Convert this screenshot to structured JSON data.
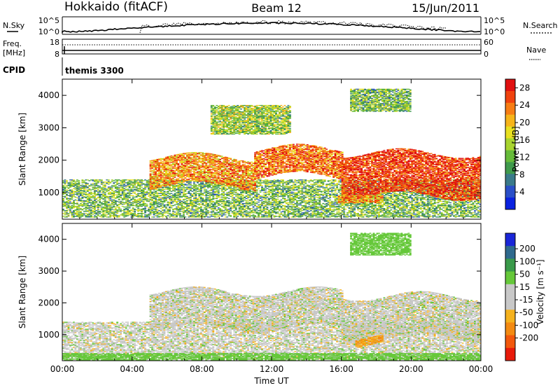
{
  "header": {
    "station": "Hokkaido (fitACF)",
    "beam": "Beam 12",
    "date": "15/Jun/2011"
  },
  "summary": {
    "nsky_label": "N.Sky",
    "nsky_ticks": [
      "10^5",
      "10^0"
    ],
    "nsearch_label": "N.Search",
    "nsearch_ticks": [
      "10^5",
      "10^0"
    ],
    "freq_label": "Freq.",
    "freq_unit": "[MHz]",
    "freq_ticks": [
      "18",
      "8"
    ],
    "nave_label": "Nave",
    "nave_ticks": [
      "60",
      "0"
    ],
    "cpid_label": "CPID",
    "cpid_value": "themis 3300"
  },
  "chart_data": [
    {
      "type": "heatmap",
      "name": "power",
      "ylabel": "Slant Range [km]",
      "xlabel": "",
      "x_ticks": [
        "00:00",
        "04:00",
        "08:00",
        "12:00",
        "16:00",
        "20:00",
        "00:00"
      ],
      "xlim_hours": [
        0,
        24
      ],
      "ylim_km": [
        180,
        4500
      ],
      "y_ticks": [
        1000,
        2000,
        3000,
        4000
      ],
      "colorbar": {
        "label": "Power [dB]",
        "ticks": [
          "4",
          "8",
          "12",
          "16",
          "20",
          "24",
          "28"
        ],
        "range": [
          0,
          30
        ],
        "colors": [
          "#0a22e0",
          "#2a4fc8",
          "#3a7a8a",
          "#3f9a4c",
          "#66bb3a",
          "#a8d42e",
          "#e8e020",
          "#f6b41a",
          "#f77d14",
          "#f0420e",
          "#e01010"
        ]
      },
      "echo_bands": [
        {
          "t": [
            0,
            24
          ],
          "range_km": [
            240,
            1400
          ],
          "power_db": 12,
          "note_level": "scattered"
        },
        {
          "t": [
            5,
            11
          ],
          "range_km": [
            1200,
            2100
          ],
          "power_db": 22
        },
        {
          "t": [
            11,
            16
          ],
          "range_km": [
            1500,
            2350
          ],
          "power_db": 24
        },
        {
          "t": [
            16,
            24
          ],
          "range_km": [
            900,
            2200
          ],
          "power_db": 27
        },
        {
          "t": [
            15.8,
            18.4
          ],
          "range_km": [
            680,
            920
          ],
          "power_db": 22
        },
        {
          "t": [
            8.5,
            13
          ],
          "range_km": [
            2800,
            3700
          ],
          "power_db": 14
        },
        {
          "t": [
            16.5,
            20
          ],
          "range_km": [
            3500,
            4200
          ],
          "power_db": 12
        }
      ]
    },
    {
      "type": "heatmap",
      "name": "velocity",
      "ylabel": "Slant Range [km]",
      "xlabel": "Time UT",
      "x_ticks": [
        "00:00",
        "04:00",
        "08:00",
        "12:00",
        "16:00",
        "20:00",
        "00:00"
      ],
      "xlim_hours": [
        0,
        24
      ],
      "ylim_km": [
        180,
        4500
      ],
      "y_ticks": [
        1000,
        2000,
        3000,
        4000
      ],
      "colorbar": {
        "label": "Velocity [m s⁻¹]",
        "ticks": [
          "200",
          "100",
          "50",
          "15",
          "-15",
          "-50",
          "-100",
          "-200"
        ],
        "colors": [
          "#1a26d8",
          "#2f6a8e",
          "#3a9a4a",
          "#66c83a",
          "#c8c8c8",
          "#c8c8c8",
          "#f5b21e",
          "#f38a12",
          "#f2580c",
          "#e81a0a"
        ]
      },
      "echo_bands": [
        {
          "t": [
            0,
            24
          ],
          "range_km": [
            240,
            1400
          ],
          "velocity_ms": 0
        },
        {
          "t": [
            5,
            16
          ],
          "range_km": [
            1200,
            2350
          ],
          "velocity_ms": 0
        },
        {
          "t": [
            16,
            24
          ],
          "range_km": [
            900,
            2200
          ],
          "velocity_ms": 0
        },
        {
          "t": [
            16.8,
            18.4
          ],
          "range_km": [
            680,
            920
          ],
          "velocity_ms": -50
        },
        {
          "t": [
            0,
            24
          ],
          "range_km": [
            200,
            420
          ],
          "velocity_ms": 40
        },
        {
          "t": [
            16.5,
            20
          ],
          "range_km": [
            3500,
            4200
          ],
          "velocity_ms": 40
        }
      ]
    }
  ]
}
